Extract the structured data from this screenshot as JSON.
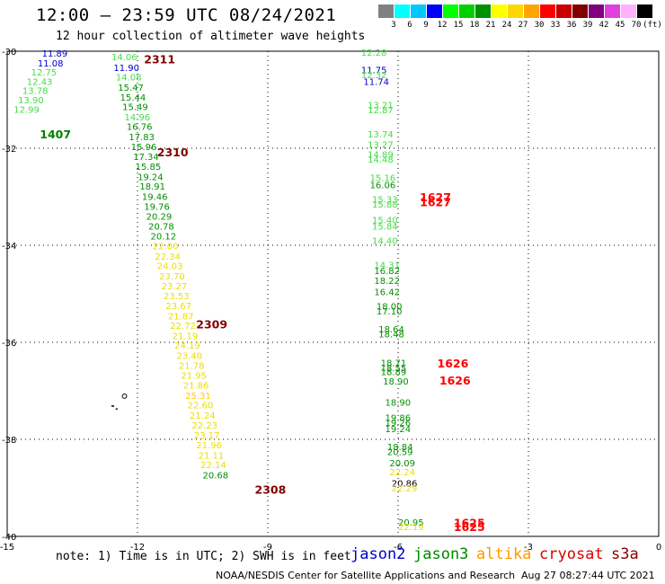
{
  "title": "12:00 – 23:59 UTC 08/24/2021",
  "subtitle": "12 hour collection of altimeter wave heights",
  "legend": {
    "labels": [
      "3",
      "6",
      "9",
      "12",
      "15",
      "18",
      "21",
      "24",
      "27",
      "30",
      "33",
      "36",
      "39",
      "42",
      "45",
      "70",
      "(ft)"
    ],
    "colors": [
      "#808080",
      "#00ffff",
      "#00c8ff",
      "#0000ff",
      "#00ff00",
      "#00d000",
      "#009000",
      "#ffff00",
      "#ffd700",
      "#ffa500",
      "#ff0000",
      "#c80000",
      "#800000",
      "#800080",
      "#e040e0",
      "#ffb0ff",
      "#000000"
    ]
  },
  "footnote": "note:  1) Time is in UTC;  2) SWH is in feet",
  "satellites": [
    {
      "name": "jason2",
      "color": "#0000cc"
    },
    {
      "name": "jason3",
      "color": "#008800"
    },
    {
      "name": "altika",
      "color": "#ff9900"
    },
    {
      "name": "cryosat",
      "color": "#dd0000"
    },
    {
      "name": "s3a",
      "color": "#880000"
    }
  ],
  "credit": "NOAA/NESDIS Center for Satellite Applications and Research",
  "timestamp": "Aug 27 08:27:44 UTC 2021",
  "map": {
    "lon_range": [
      -15,
      0
    ],
    "lat_range": [
      -40,
      -30
    ],
    "x_ticks": [
      "-15",
      "-12",
      "-9",
      "-6",
      "-3",
      "0"
    ],
    "y_ticks": [
      "-30",
      "-32",
      "-34",
      "-36",
      "-38",
      "-40"
    ],
    "time_labels": [
      {
        "text": "2311",
        "lon": -11.85,
        "lat": -30.16,
        "color": "#800000"
      },
      {
        "text": "2310",
        "lon": -11.55,
        "lat": -32.07,
        "color": "#800000"
      },
      {
        "text": "2309",
        "lon": -10.65,
        "lat": -35.62,
        "color": "#800000"
      },
      {
        "text": "2308",
        "lon": -9.3,
        "lat": -39.03,
        "color": "#800000"
      },
      {
        "text": "1407",
        "lon": -14.25,
        "lat": -31.7,
        "color": "#008000"
      },
      {
        "text": "1627",
        "lon": -5.5,
        "lat": -33.0,
        "color": "#ff0000"
      },
      {
        "text": "1627",
        "lon": -5.5,
        "lat": -33.1,
        "color": "#ff0000"
      },
      {
        "text": "1626",
        "lon": -5.1,
        "lat": -36.43,
        "color": "#ff0000"
      },
      {
        "text": "1626",
        "lon": -5.05,
        "lat": -36.78,
        "color": "#ff0000"
      },
      {
        "text": "1625",
        "lon": -4.72,
        "lat": -39.71,
        "color": "#ff0000"
      },
      {
        "text": "1625",
        "lon": -4.72,
        "lat": -39.8,
        "color": "#ff0000"
      }
    ],
    "heights": [
      {
        "v": "11.89",
        "lon": -14.2,
        "lat": -30.04,
        "c": "#0000cc"
      },
      {
        "v": "11.08",
        "lon": -14.3,
        "lat": -30.24,
        "c": "#0000cc"
      },
      {
        "v": "12.75",
        "lon": -14.45,
        "lat": -30.43,
        "c": "#44dd44"
      },
      {
        "v": "12.43",
        "lon": -14.55,
        "lat": -30.62,
        "c": "#44dd44"
      },
      {
        "v": "13.78",
        "lon": -14.65,
        "lat": -30.81,
        "c": "#44dd44"
      },
      {
        "v": "13.90",
        "lon": -14.75,
        "lat": -31.0,
        "c": "#44dd44"
      },
      {
        "v": "12.99",
        "lon": -14.85,
        "lat": -31.19,
        "c": "#44dd44"
      },
      {
        "v": "14.06",
        "lon": -12.6,
        "lat": -30.11,
        "c": "#44dd44"
      },
      {
        "v": "11.90",
        "lon": -12.55,
        "lat": -30.33,
        "c": "#0000cc"
      },
      {
        "v": "14.08",
        "lon": -12.5,
        "lat": -30.53,
        "c": "#44dd44"
      },
      {
        "v": "15.47",
        "lon": -12.45,
        "lat": -30.74,
        "c": "#009000"
      },
      {
        "v": "15.44",
        "lon": -12.4,
        "lat": -30.94,
        "c": "#009000"
      },
      {
        "v": "15.49",
        "lon": -12.35,
        "lat": -31.14,
        "c": "#009000"
      },
      {
        "v": "14.96",
        "lon": -12.3,
        "lat": -31.35,
        "c": "#44dd44"
      },
      {
        "v": "16.76",
        "lon": -12.25,
        "lat": -31.55,
        "c": "#009000"
      },
      {
        "v": "17.83",
        "lon": -12.2,
        "lat": -31.76,
        "c": "#009000"
      },
      {
        "v": "15.96",
        "lon": -12.15,
        "lat": -31.96,
        "c": "#009000"
      },
      {
        "v": "17.34",
        "lon": -12.1,
        "lat": -32.17,
        "c": "#009000"
      },
      {
        "v": "15.85",
        "lon": -12.05,
        "lat": -32.37,
        "c": "#009000"
      },
      {
        "v": "19.24",
        "lon": -12.0,
        "lat": -32.58,
        "c": "#009000"
      },
      {
        "v": "18.91",
        "lon": -11.95,
        "lat": -32.78,
        "c": "#009000"
      },
      {
        "v": "19.46",
        "lon": -11.9,
        "lat": -32.99,
        "c": "#009000"
      },
      {
        "v": "19.76",
        "lon": -11.85,
        "lat": -33.19,
        "c": "#009000"
      },
      {
        "v": "20.29",
        "lon": -11.8,
        "lat": -33.4,
        "c": "#009000"
      },
      {
        "v": "20.78",
        "lon": -11.75,
        "lat": -33.6,
        "c": "#009000"
      },
      {
        "v": "20.12",
        "lon": -11.7,
        "lat": -33.81,
        "c": "#009000"
      },
      {
        "v": "22.00",
        "lon": -11.65,
        "lat": -34.01,
        "c": "#eedd00"
      },
      {
        "v": "22.34",
        "lon": -11.6,
        "lat": -34.22,
        "c": "#eedd00"
      },
      {
        "v": "24.03",
        "lon": -11.55,
        "lat": -34.42,
        "c": "#eedd00"
      },
      {
        "v": "23.70",
        "lon": -11.5,
        "lat": -34.63,
        "c": "#eedd00"
      },
      {
        "v": "23.27",
        "lon": -11.45,
        "lat": -34.83,
        "c": "#eedd00"
      },
      {
        "v": "23.53",
        "lon": -11.4,
        "lat": -35.04,
        "c": "#eedd00"
      },
      {
        "v": "23.67",
        "lon": -11.35,
        "lat": -35.24,
        "c": "#eedd00"
      },
      {
        "v": "21.87",
        "lon": -11.3,
        "lat": -35.45,
        "c": "#eedd00"
      },
      {
        "v": "22.72",
        "lon": -11.25,
        "lat": -35.65,
        "c": "#eedd00"
      },
      {
        "v": "21.19",
        "lon": -11.2,
        "lat": -35.86,
        "c": "#eedd00"
      },
      {
        "v": "24.19",
        "lon": -11.15,
        "lat": -36.06,
        "c": "#eedd00"
      },
      {
        "v": "23.40",
        "lon": -11.1,
        "lat": -36.27,
        "c": "#eedd00"
      },
      {
        "v": "21.78",
        "lon": -11.05,
        "lat": -36.47,
        "c": "#eedd00"
      },
      {
        "v": "21.95",
        "lon": -11.0,
        "lat": -36.68,
        "c": "#eedd00"
      },
      {
        "v": "21.86",
        "lon": -10.95,
        "lat": -36.88,
        "c": "#eedd00"
      },
      {
        "v": "25.31",
        "lon": -10.9,
        "lat": -37.09,
        "c": "#ffcc00"
      },
      {
        "v": "22.60",
        "lon": -10.85,
        "lat": -37.29,
        "c": "#eedd00"
      },
      {
        "v": "21.24",
        "lon": -10.8,
        "lat": -37.5,
        "c": "#eedd00"
      },
      {
        "v": "22.23",
        "lon": -10.75,
        "lat": -37.7,
        "c": "#eedd00"
      },
      {
        "v": "23.17",
        "lon": -10.7,
        "lat": -37.91,
        "c": "#eedd00"
      },
      {
        "v": "21.96",
        "lon": -10.65,
        "lat": -38.11,
        "c": "#eedd00"
      },
      {
        "v": "21.11",
        "lon": -10.6,
        "lat": -38.32,
        "c": "#eedd00"
      },
      {
        "v": "22.14",
        "lon": -10.55,
        "lat": -38.52,
        "c": "#eedd00"
      },
      {
        "v": "20.68",
        "lon": -10.5,
        "lat": -38.73,
        "c": "#009000"
      },
      {
        "v": "12.28",
        "lon": -6.85,
        "lat": -30.02,
        "c": "#44dd44"
      },
      {
        "v": "11.75",
        "lon": -6.85,
        "lat": -30.38,
        "c": "#0000cc"
      },
      {
        "v": "12.32",
        "lon": -6.85,
        "lat": -30.48,
        "c": "#44dd44"
      },
      {
        "v": "11.74",
        "lon": -6.8,
        "lat": -30.62,
        "c": "#0000cc"
      },
      {
        "v": "13.21",
        "lon": -6.7,
        "lat": -31.1,
        "c": "#44dd44"
      },
      {
        "v": "12.87",
        "lon": -6.7,
        "lat": -31.2,
        "c": "#44dd44"
      },
      {
        "v": "13.74",
        "lon": -6.7,
        "lat": -31.7,
        "c": "#44dd44"
      },
      {
        "v": "13.27",
        "lon": -6.7,
        "lat": -31.92,
        "c": "#44dd44"
      },
      {
        "v": "14.89",
        "lon": -6.7,
        "lat": -32.12,
        "c": "#44dd44"
      },
      {
        "v": "14.48",
        "lon": -6.7,
        "lat": -32.22,
        "c": "#44dd44"
      },
      {
        "v": "15.16",
        "lon": -6.65,
        "lat": -32.6,
        "c": "#44dd44"
      },
      {
        "v": "16.06",
        "lon": -6.65,
        "lat": -32.75,
        "c": "#009000"
      },
      {
        "v": "15.33",
        "lon": -6.6,
        "lat": -33.05,
        "c": "#44dd44"
      },
      {
        "v": "15.88",
        "lon": -6.6,
        "lat": -33.15,
        "c": "#44dd44"
      },
      {
        "v": "15.40",
        "lon": -6.6,
        "lat": -33.47,
        "c": "#44dd44"
      },
      {
        "v": "15.84",
        "lon": -6.6,
        "lat": -33.6,
        "c": "#44dd44"
      },
      {
        "v": "14.40",
        "lon": -6.6,
        "lat": -33.9,
        "c": "#44dd44"
      },
      {
        "v": "14.31",
        "lon": -6.55,
        "lat": -34.4,
        "c": "#44dd44"
      },
      {
        "v": "16.82",
        "lon": -6.55,
        "lat": -34.52,
        "c": "#009000"
      },
      {
        "v": "18.22",
        "lon": -6.55,
        "lat": -34.72,
        "c": "#009000"
      },
      {
        "v": "16.42",
        "lon": -6.55,
        "lat": -34.95,
        "c": "#009000"
      },
      {
        "v": "18.00",
        "lon": -6.5,
        "lat": -35.25,
        "c": "#009000"
      },
      {
        "v": "17.10",
        "lon": -6.5,
        "lat": -35.35,
        "c": "#009000"
      },
      {
        "v": "18.64",
        "lon": -6.45,
        "lat": -35.72,
        "c": "#009000"
      },
      {
        "v": "18.48",
        "lon": -6.45,
        "lat": -35.82,
        "c": "#009000"
      },
      {
        "v": "18.71",
        "lon": -6.4,
        "lat": -36.42,
        "c": "#009000"
      },
      {
        "v": "18.55",
        "lon": -6.4,
        "lat": -36.52,
        "c": "#009000"
      },
      {
        "v": "18.89",
        "lon": -6.4,
        "lat": -36.6,
        "c": "#009000"
      },
      {
        "v": "18.90",
        "lon": -6.35,
        "lat": -36.8,
        "c": "#009000"
      },
      {
        "v": "18.90",
        "lon": -6.3,
        "lat": -37.23,
        "c": "#009000"
      },
      {
        "v": "19.86",
        "lon": -6.3,
        "lat": -37.55,
        "c": "#009000"
      },
      {
        "v": "19.26",
        "lon": -6.3,
        "lat": -37.65,
        "c": "#009000"
      },
      {
        "v": "19.24",
        "lon": -6.3,
        "lat": -37.78,
        "c": "#009000"
      },
      {
        "v": "18.84",
        "lon": -6.25,
        "lat": -38.15,
        "c": "#009000"
      },
      {
        "v": "20.59",
        "lon": -6.25,
        "lat": -38.25,
        "c": "#009000"
      },
      {
        "v": "20.09",
        "lon": -6.2,
        "lat": -38.48,
        "c": "#009000"
      },
      {
        "v": "22.24",
        "lon": -6.2,
        "lat": -38.67,
        "c": "#eedd00"
      },
      {
        "v": "20.86",
        "lon": -6.15,
        "lat": -38.9,
        "c": "#000000"
      },
      {
        "v": "22.29",
        "lon": -6.15,
        "lat": -39.0,
        "c": "#eedd00"
      },
      {
        "v": "20.95",
        "lon": -6.0,
        "lat": -39.7,
        "c": "#009000"
      },
      {
        "v": "22.19",
        "lon": -6.0,
        "lat": -39.8,
        "c": "#eedd00"
      }
    ]
  }
}
